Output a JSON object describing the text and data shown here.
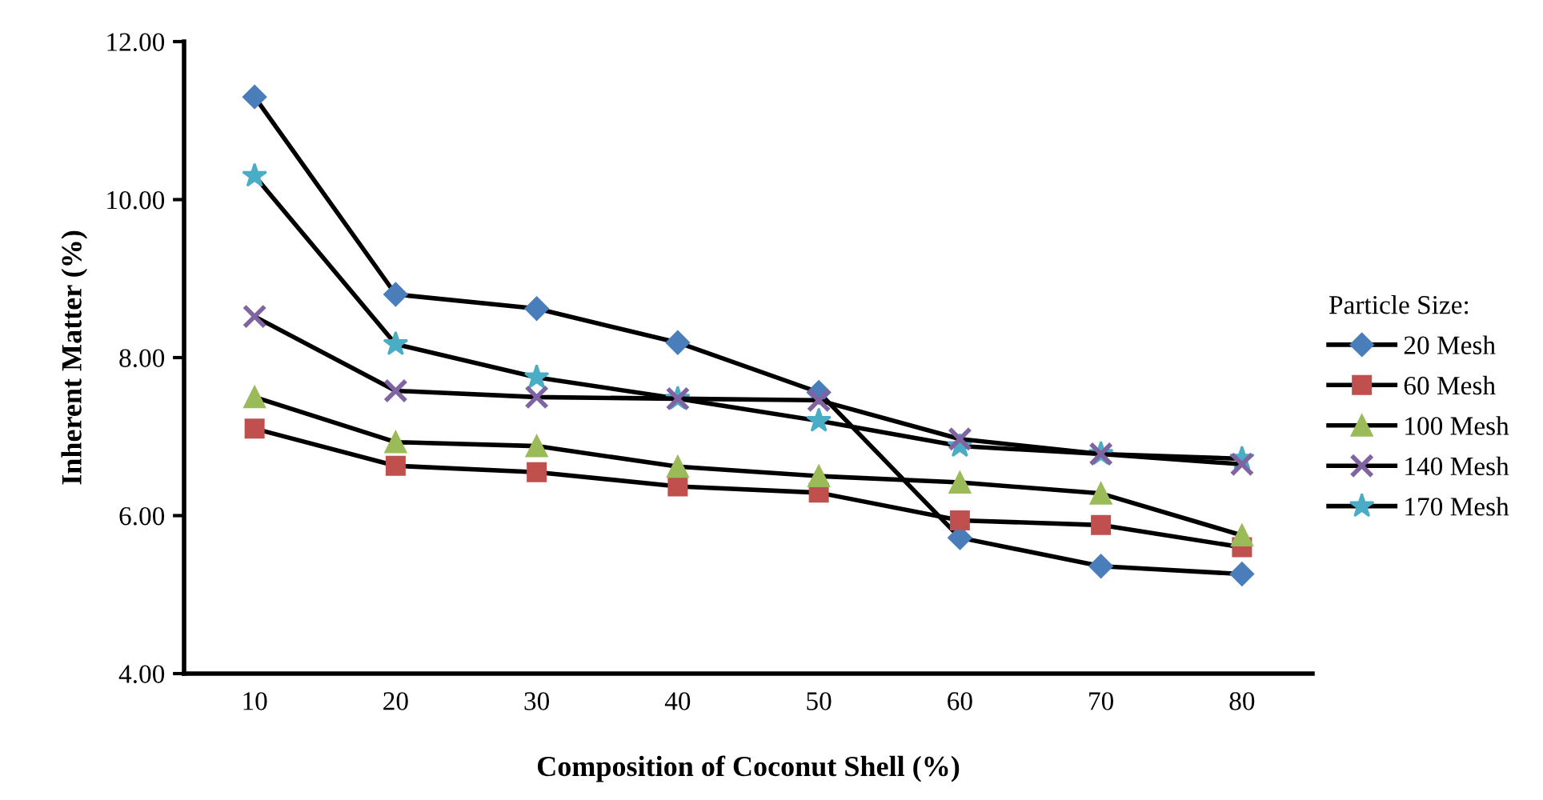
{
  "chart_data": {
    "type": "line",
    "xlabel": "Composition of Coconut Shell (%)",
    "ylabel": "Inherent Matter (%)",
    "legend_title": "Particle Size:",
    "legend": "right",
    "grid": false,
    "categories": [
      "10",
      "20",
      "30",
      "40",
      "50",
      "60",
      "70",
      "80"
    ],
    "ylim": [
      4,
      12
    ],
    "yticks": [
      {
        "value": 4,
        "label": "4.00"
      },
      {
        "value": 6,
        "label": "6.00"
      },
      {
        "value": 8,
        "label": "8.00"
      },
      {
        "value": 10,
        "label": "10.00"
      },
      {
        "value": 12,
        "label": "12.00"
      }
    ],
    "series": [
      {
        "name": "20 Mesh",
        "color": "#4a7ebb",
        "marker": "diamond",
        "values": [
          11.3,
          8.8,
          8.62,
          8.19,
          7.56,
          5.72,
          5.36,
          5.26
        ]
      },
      {
        "name": "60 Mesh",
        "color": "#c0504d",
        "marker": "square",
        "values": [
          7.1,
          6.63,
          6.55,
          6.37,
          6.29,
          5.94,
          5.88,
          5.6
        ]
      },
      {
        "name": "100 Mesh",
        "color": "#9bbb59",
        "marker": "triangle",
        "values": [
          7.5,
          6.93,
          6.88,
          6.62,
          6.5,
          6.42,
          6.28,
          5.75
        ]
      },
      {
        "name": "140 Mesh",
        "color": "#8064a2",
        "marker": "cross",
        "values": [
          8.52,
          7.58,
          7.5,
          7.48,
          7.46,
          6.97,
          6.78,
          6.65
        ]
      },
      {
        "name": "170 Mesh",
        "color": "#4bacc6",
        "marker": "star",
        "values": [
          10.3,
          8.17,
          7.75,
          7.48,
          7.2,
          6.88,
          6.78,
          6.72
        ]
      }
    ]
  }
}
